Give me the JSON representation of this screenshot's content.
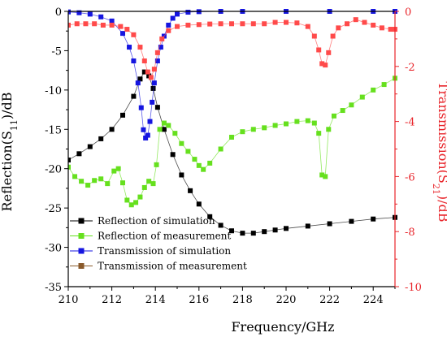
{
  "chart_data": {
    "type": "scatter",
    "xlabel": "Frequency/GHz",
    "ylabel_left": "Reflection(S11)/dB",
    "ylabel_right": "Transmission(S21)/dB",
    "ylabel_left_parts": [
      "Reflection(S",
      "11",
      ")/dB"
    ],
    "ylabel_right_parts": [
      "Transmission(S",
      "21",
      ")/dB"
    ],
    "xlim": [
      210,
      225
    ],
    "ylim_left": [
      -35,
      0
    ],
    "ylim_right": [
      -10,
      0
    ],
    "x_ticks": [
      210,
      212,
      214,
      216,
      218,
      220,
      222,
      224
    ],
    "y_left_ticks": [
      0,
      -5,
      -10,
      -15,
      -20,
      -25,
      -30,
      -35
    ],
    "y_right_ticks": [
      0,
      -2,
      -4,
      -6,
      -8,
      -10
    ],
    "legend_position": "bottom-left",
    "grid": false,
    "colors": {
      "left_axis": "#000000",
      "right_axis": "#e8242a",
      "reflection_simulation": "#000000",
      "reflection_measurement": "#66e01e",
      "transmission_simulation": "#1515e0",
      "transmission_measurement": "#ff4a4a",
      "legend_transmission_measurement_marker": "#8a5a2b"
    },
    "series": [
      {
        "name": "Reflection of simulation",
        "axis": "left",
        "color_key": "reflection_simulation",
        "points": [
          [
            210.0,
            -18.9
          ],
          [
            210.5,
            -18.1
          ],
          [
            211.0,
            -17.2
          ],
          [
            211.5,
            -16.2
          ],
          [
            212.0,
            -15.0
          ],
          [
            212.5,
            -13.2
          ],
          [
            213.0,
            -10.8
          ],
          [
            213.3,
            -8.6
          ],
          [
            213.5,
            -7.7
          ],
          [
            213.7,
            -8.2
          ],
          [
            213.9,
            -9.8
          ],
          [
            214.1,
            -12.2
          ],
          [
            214.4,
            -15.0
          ],
          [
            214.8,
            -18.2
          ],
          [
            215.2,
            -20.8
          ],
          [
            215.6,
            -22.8
          ],
          [
            216.0,
            -24.5
          ],
          [
            216.5,
            -26.1
          ],
          [
            217.0,
            -27.2
          ],
          [
            217.5,
            -27.9
          ],
          [
            218.0,
            -28.2
          ],
          [
            218.5,
            -28.2
          ],
          [
            219.0,
            -28.0
          ],
          [
            219.5,
            -27.8
          ],
          [
            220.0,
            -27.6
          ],
          [
            221.0,
            -27.3
          ],
          [
            222.0,
            -27.0
          ],
          [
            223.0,
            -26.7
          ],
          [
            224.0,
            -26.4
          ],
          [
            225.0,
            -26.2
          ]
        ]
      },
      {
        "name": "Reflection of measurement",
        "axis": "left",
        "color_key": "reflection_measurement",
        "points": [
          [
            210.0,
            -19.8
          ],
          [
            210.3,
            -21.0
          ],
          [
            210.6,
            -21.6
          ],
          [
            210.9,
            -22.1
          ],
          [
            211.2,
            -21.5
          ],
          [
            211.5,
            -21.3
          ],
          [
            211.8,
            -21.9
          ],
          [
            212.1,
            -20.3
          ],
          [
            212.3,
            -20.0
          ],
          [
            212.5,
            -21.8
          ],
          [
            212.7,
            -24.0
          ],
          [
            212.9,
            -24.6
          ],
          [
            213.1,
            -24.3
          ],
          [
            213.3,
            -23.6
          ],
          [
            213.5,
            -22.4
          ],
          [
            213.7,
            -21.6
          ],
          [
            213.9,
            -21.9
          ],
          [
            214.05,
            -19.5
          ],
          [
            214.2,
            -15.0
          ],
          [
            214.4,
            -14.2
          ],
          [
            214.6,
            -14.5
          ],
          [
            214.9,
            -15.5
          ],
          [
            215.2,
            -16.8
          ],
          [
            215.5,
            -17.8
          ],
          [
            215.8,
            -18.8
          ],
          [
            216.0,
            -19.6
          ],
          [
            216.2,
            -20.1
          ],
          [
            216.5,
            -19.3
          ],
          [
            217.0,
            -17.5
          ],
          [
            217.5,
            -16.0
          ],
          [
            218.0,
            -15.3
          ],
          [
            218.5,
            -15.0
          ],
          [
            219.0,
            -14.8
          ],
          [
            219.5,
            -14.5
          ],
          [
            220.0,
            -14.3
          ],
          [
            220.5,
            -14.0
          ],
          [
            221.0,
            -13.9
          ],
          [
            221.3,
            -14.2
          ],
          [
            221.5,
            -15.5
          ],
          [
            221.65,
            -20.8
          ],
          [
            221.8,
            -21.0
          ],
          [
            221.95,
            -15.0
          ],
          [
            222.2,
            -13.3
          ],
          [
            222.6,
            -12.6
          ],
          [
            223.0,
            -11.9
          ],
          [
            223.5,
            -10.9
          ],
          [
            224.0,
            -10.0
          ],
          [
            224.5,
            -9.3
          ],
          [
            225.0,
            -8.5
          ]
        ]
      },
      {
        "name": "Transmission of simulation",
        "axis": "right",
        "color_key": "transmission_simulation",
        "points": [
          [
            210.0,
            -0.02
          ],
          [
            210.5,
            -0.05
          ],
          [
            211.0,
            -0.1
          ],
          [
            211.5,
            -0.2
          ],
          [
            212.0,
            -0.35
          ],
          [
            212.5,
            -0.8
          ],
          [
            212.8,
            -1.3
          ],
          [
            213.0,
            -1.8
          ],
          [
            213.2,
            -2.6
          ],
          [
            213.35,
            -3.5
          ],
          [
            213.45,
            -4.3
          ],
          [
            213.55,
            -4.6
          ],
          [
            213.65,
            -4.5
          ],
          [
            213.75,
            -4.0
          ],
          [
            213.85,
            -3.3
          ],
          [
            213.95,
            -2.6
          ],
          [
            214.1,
            -1.8
          ],
          [
            214.25,
            -1.3
          ],
          [
            214.4,
            -0.9
          ],
          [
            214.6,
            -0.5
          ],
          [
            214.8,
            -0.25
          ],
          [
            215.0,
            -0.1
          ],
          [
            215.5,
            -0.03
          ],
          [
            216.0,
            -0.01
          ],
          [
            217.0,
            0.0
          ],
          [
            218.0,
            0.0
          ],
          [
            220.0,
            0.0
          ],
          [
            222.0,
            0.0
          ],
          [
            224.0,
            0.0
          ],
          [
            225.0,
            0.0
          ]
        ]
      },
      {
        "name": "Transmission of measurement",
        "axis": "right",
        "color_key": "transmission_measurement",
        "points": [
          [
            210.0,
            -0.5
          ],
          [
            210.4,
            -0.45
          ],
          [
            210.8,
            -0.45
          ],
          [
            211.2,
            -0.45
          ],
          [
            211.6,
            -0.5
          ],
          [
            212.0,
            -0.5
          ],
          [
            212.4,
            -0.55
          ],
          [
            212.7,
            -0.65
          ],
          [
            213.0,
            -0.85
          ],
          [
            213.3,
            -1.3
          ],
          [
            213.5,
            -1.8
          ],
          [
            213.65,
            -2.2
          ],
          [
            213.8,
            -2.4
          ],
          [
            213.95,
            -2.1
          ],
          [
            214.1,
            -1.5
          ],
          [
            214.3,
            -1.0
          ],
          [
            214.6,
            -0.7
          ],
          [
            215.0,
            -0.55
          ],
          [
            215.5,
            -0.5
          ],
          [
            216.0,
            -0.48
          ],
          [
            216.5,
            -0.46
          ],
          [
            217.0,
            -0.45
          ],
          [
            217.5,
            -0.45
          ],
          [
            218.0,
            -0.45
          ],
          [
            218.5,
            -0.45
          ],
          [
            219.0,
            -0.45
          ],
          [
            219.5,
            -0.4
          ],
          [
            220.0,
            -0.4
          ],
          [
            220.5,
            -0.42
          ],
          [
            221.0,
            -0.55
          ],
          [
            221.3,
            -0.9
          ],
          [
            221.5,
            -1.4
          ],
          [
            221.65,
            -1.9
          ],
          [
            221.8,
            -1.95
          ],
          [
            221.95,
            -1.5
          ],
          [
            222.15,
            -0.9
          ],
          [
            222.4,
            -0.6
          ],
          [
            222.8,
            -0.45
          ],
          [
            223.2,
            -0.3
          ],
          [
            223.6,
            -0.4
          ],
          [
            224.0,
            -0.5
          ],
          [
            224.4,
            -0.6
          ],
          [
            224.8,
            -0.65
          ],
          [
            225.0,
            -0.65
          ]
        ]
      }
    ],
    "legend": [
      {
        "label": "Reflection of simulation",
        "color_key": "reflection_simulation",
        "line": true
      },
      {
        "label": "Reflection of measurement",
        "color_key": "reflection_measurement",
        "line": true
      },
      {
        "label": "Transmission of simulation",
        "color_key": "transmission_simulation",
        "line": true
      },
      {
        "label": "Transmission of measurement",
        "color_key": "legend_transmission_measurement_marker",
        "line": true
      }
    ]
  }
}
